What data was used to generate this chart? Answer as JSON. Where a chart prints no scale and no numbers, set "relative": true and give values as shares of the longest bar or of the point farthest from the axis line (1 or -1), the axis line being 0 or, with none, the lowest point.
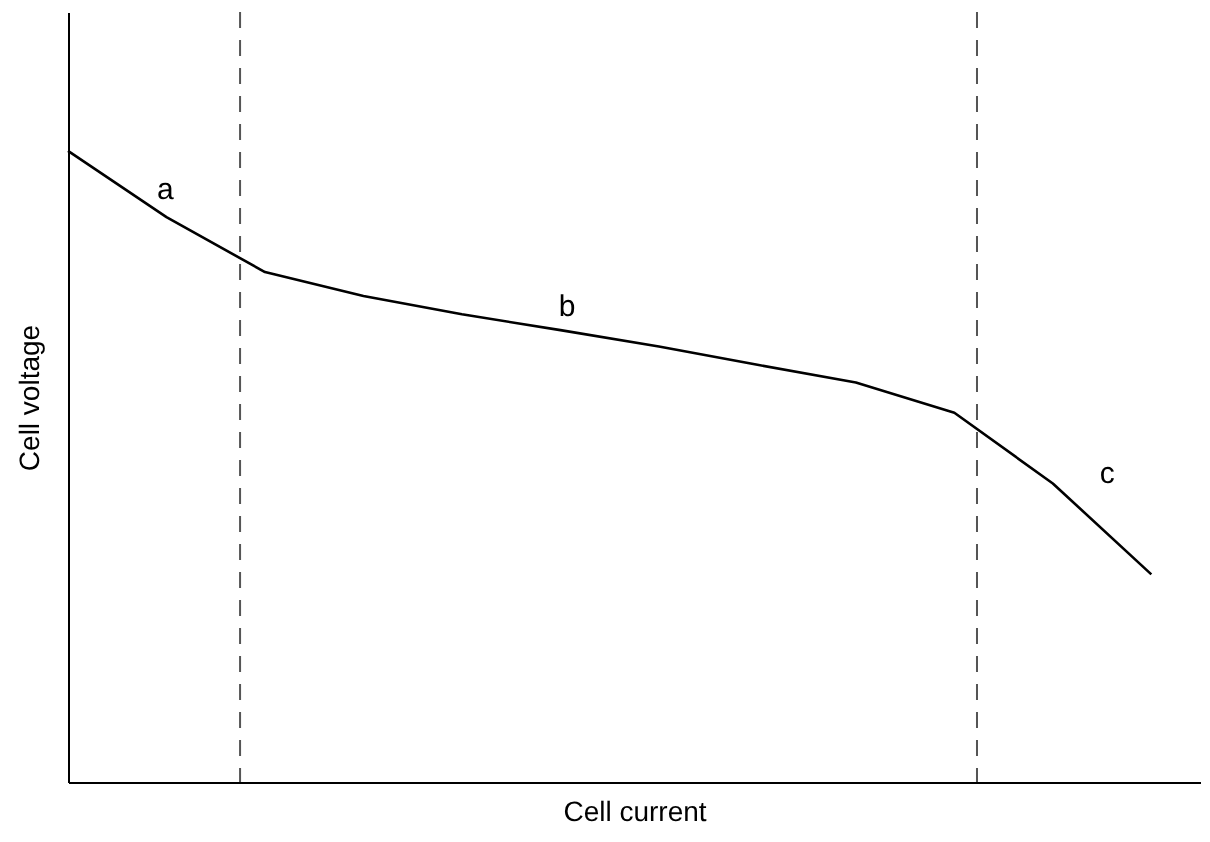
{
  "chart_data": {
    "type": "line",
    "relative": true,
    "xlabel": "Cell current",
    "ylabel": "Cell voltage",
    "tick_labels": false,
    "grid": false,
    "legend": false,
    "marker": "none",
    "line_style": "solid",
    "categories": [
      null,
      null,
      null,
      null,
      null,
      null,
      null,
      null,
      null,
      null,
      null,
      null
    ],
    "series": [
      {
        "color": "#000000",
        "values": [
          1,
          0.895,
          0.808,
          0.77,
          0.741,
          0.716,
          0.69,
          0.661,
          0.633,
          0.585,
          0.473,
          0.329
        ]
      }
    ],
    "annotations": [
      "a",
      "b",
      "c"
    ]
  }
}
